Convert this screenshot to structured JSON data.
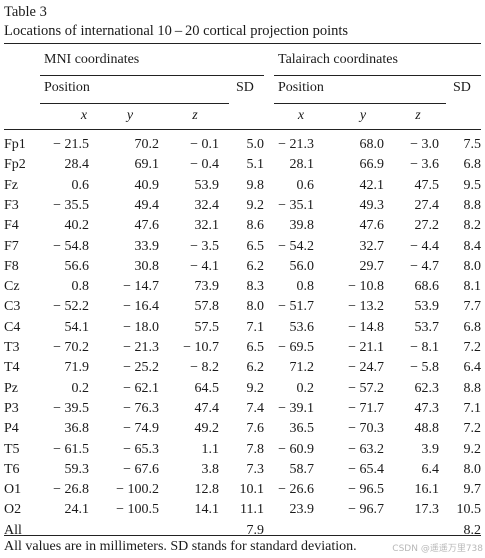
{
  "table": {
    "label": "Table 3",
    "title": "Locations of international 10 – 20 cortical projection points",
    "group_headers": [
      "MNI coordinates",
      "Talairach coordinates"
    ],
    "position_label": "Position",
    "sd_label": "SD",
    "axis_labels": [
      "x",
      "y",
      "z"
    ],
    "rows": [
      {
        "label": "Fp1",
        "values": [
          "− 21.5",
          "70.2",
          "− 0.1",
          "5.0",
          "− 21.3",
          "68.0",
          "− 3.0",
          "7.5"
        ]
      },
      {
        "label": "Fp2",
        "values": [
          "28.4",
          "69.1",
          "− 0.4",
          "5.1",
          "28.1",
          "66.9",
          "− 3.6",
          "6.8"
        ]
      },
      {
        "label": "Fz",
        "values": [
          "0.6",
          "40.9",
          "53.9",
          "9.8",
          "0.6",
          "42.1",
          "47.5",
          "9.5"
        ]
      },
      {
        "label": "F3",
        "values": [
          "− 35.5",
          "49.4",
          "32.4",
          "9.2",
          "− 35.1",
          "49.3",
          "27.4",
          "8.8"
        ]
      },
      {
        "label": "F4",
        "values": [
          "40.2",
          "47.6",
          "32.1",
          "8.6",
          "39.8",
          "47.6",
          "27.2",
          "8.2"
        ]
      },
      {
        "label": "F7",
        "values": [
          "− 54.8",
          "33.9",
          "− 3.5",
          "6.5",
          "− 54.2",
          "32.7",
          "− 4.4",
          "8.4"
        ]
      },
      {
        "label": "F8",
        "values": [
          "56.6",
          "30.8",
          "− 4.1",
          "6.2",
          "56.0",
          "29.7",
          "− 4.7",
          "8.0"
        ]
      },
      {
        "label": "Cz",
        "values": [
          "0.8",
          "− 14.7",
          "73.9",
          "8.3",
          "0.8",
          "− 10.8",
          "68.6",
          "8.1"
        ]
      },
      {
        "label": "C3",
        "values": [
          "− 52.2",
          "− 16.4",
          "57.8",
          "8.0",
          "− 51.7",
          "− 13.2",
          "53.9",
          "7.7"
        ]
      },
      {
        "label": "C4",
        "values": [
          "54.1",
          "− 18.0",
          "57.5",
          "7.1",
          "53.6",
          "− 14.8",
          "53.7",
          "6.8"
        ]
      },
      {
        "label": "T3",
        "values": [
          "− 70.2",
          "− 21.3",
          "− 10.7",
          "6.5",
          "− 69.5",
          "− 21.1",
          "− 8.1",
          "7.2"
        ]
      },
      {
        "label": "T4",
        "values": [
          "71.9",
          "− 25.2",
          "− 8.2",
          "6.2",
          "71.2",
          "− 24.7",
          "− 5.8",
          "6.4"
        ]
      },
      {
        "label": "Pz",
        "values": [
          "0.2",
          "− 62.1",
          "64.5",
          "9.2",
          "0.2",
          "− 57.2",
          "62.3",
          "8.8"
        ]
      },
      {
        "label": "P3",
        "values": [
          "− 39.5",
          "− 76.3",
          "47.4",
          "7.4",
          "− 39.1",
          "− 71.7",
          "47.3",
          "7.1"
        ]
      },
      {
        "label": "P4",
        "values": [
          "36.8",
          "− 74.9",
          "49.2",
          "7.6",
          "36.5",
          "− 70.3",
          "48.8",
          "7.2"
        ]
      },
      {
        "label": "T5",
        "values": [
          "− 61.5",
          "− 65.3",
          "1.1",
          "7.8",
          "− 60.9",
          "− 63.2",
          "3.9",
          "9.2"
        ]
      },
      {
        "label": "T6",
        "values": [
          "59.3",
          "− 67.6",
          "3.8",
          "7.3",
          "58.7",
          "− 65.4",
          "6.4",
          "8.0"
        ]
      },
      {
        "label": "O1",
        "values": [
          "− 26.8",
          "− 100.2",
          "12.8",
          "10.1",
          "− 26.6",
          "− 96.5",
          "16.1",
          "9.7"
        ]
      },
      {
        "label": "O2",
        "values": [
          "24.1",
          "− 100.5",
          "14.1",
          "11.1",
          "23.9",
          "− 96.7",
          "17.3",
          "10.5"
        ]
      },
      {
        "label": "All",
        "values": [
          "",
          "",
          "",
          "7.9",
          "",
          "",
          "",
          "8.2"
        ]
      }
    ],
    "footnote": "All values are in millimeters. SD stands for standard deviation.",
    "watermark": "CSDN @遥遥万里738"
  }
}
